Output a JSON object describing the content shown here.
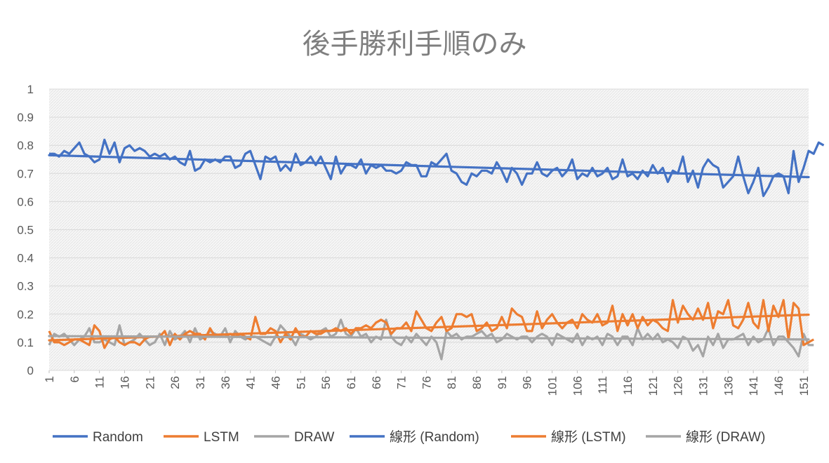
{
  "colors": {
    "random": "#4472c4",
    "lstm": "#ed7d31",
    "draw": "#a5a5a5",
    "axis_text": "#595959",
    "title": "#7f7f7f",
    "grid": "#d9d9d9"
  },
  "chart_data": {
    "type": "line",
    "title": "後手勝利手順のみ",
    "xlabel": "",
    "ylabel": "",
    "ylim": [
      0,
      1
    ],
    "yticks": [
      "0",
      "0.1",
      "0.2",
      "0.3",
      "0.4",
      "0.5",
      "0.6",
      "0.7",
      "0.8",
      "0.9",
      "1"
    ],
    "x_range": [
      1,
      152
    ],
    "xticks": [
      "1",
      "6",
      "11",
      "16",
      "21",
      "26",
      "31",
      "36",
      "41",
      "46",
      "51",
      "56",
      "61",
      "66",
      "71",
      "76",
      "81",
      "86",
      "91",
      "96",
      "101",
      "106",
      "111",
      "116",
      "121",
      "126",
      "131",
      "136",
      "141",
      "146",
      "151"
    ],
    "grid": true,
    "legend_position": "bottom",
    "series": [
      {
        "name": "Random",
        "values": [
          0.77,
          0.77,
          0.76,
          0.78,
          0.77,
          0.79,
          0.81,
          0.77,
          0.76,
          0.74,
          0.75,
          0.82,
          0.77,
          0.81,
          0.74,
          0.79,
          0.8,
          0.78,
          0.79,
          0.78,
          0.76,
          0.77,
          0.76,
          0.77,
          0.75,
          0.76,
          0.74,
          0.73,
          0.78,
          0.71,
          0.72,
          0.75,
          0.74,
          0.75,
          0.74,
          0.76,
          0.76,
          0.72,
          0.73,
          0.77,
          0.78,
          0.73,
          0.68,
          0.76,
          0.75,
          0.76,
          0.71,
          0.73,
          0.71,
          0.77,
          0.73,
          0.74,
          0.76,
          0.73,
          0.76,
          0.72,
          0.68,
          0.76,
          0.7,
          0.73,
          0.73,
          0.72,
          0.75,
          0.7,
          0.73,
          0.72,
          0.73,
          0.71,
          0.71,
          0.7,
          0.71,
          0.74,
          0.73,
          0.73,
          0.69,
          0.69,
          0.74,
          0.73,
          0.75,
          0.77,
          0.71,
          0.7,
          0.67,
          0.66,
          0.7,
          0.69,
          0.71,
          0.71,
          0.7,
          0.74,
          0.71,
          0.67,
          0.72,
          0.7,
          0.66,
          0.7,
          0.7,
          0.74,
          0.7,
          0.69,
          0.71,
          0.72,
          0.69,
          0.71,
          0.75,
          0.68,
          0.7,
          0.69,
          0.72,
          0.69,
          0.7,
          0.72,
          0.68,
          0.69,
          0.75,
          0.69,
          0.7,
          0.68,
          0.71,
          0.69,
          0.73,
          0.7,
          0.72,
          0.67,
          0.71,
          0.7,
          0.76,
          0.67,
          0.71,
          0.65,
          0.72,
          0.75,
          0.73,
          0.72,
          0.65,
          0.67,
          0.69,
          0.76,
          0.69,
          0.63,
          0.67,
          0.72,
          0.62,
          0.65,
          0.69,
          0.7,
          0.69,
          0.63,
          0.78,
          0.67,
          0.72,
          0.78,
          0.77,
          0.81,
          0.8
        ]
      },
      {
        "name": "LSTM",
        "values": [
          0.14,
          0.1,
          0.1,
          0.09,
          0.1,
          0.11,
          0.11,
          0.1,
          0.09,
          0.16,
          0.14,
          0.08,
          0.11,
          0.12,
          0.1,
          0.09,
          0.1,
          0.1,
          0.09,
          0.11,
          0.12,
          0.12,
          0.12,
          0.14,
          0.09,
          0.13,
          0.11,
          0.13,
          0.14,
          0.13,
          0.13,
          0.11,
          0.15,
          0.12,
          0.12,
          0.12,
          0.13,
          0.12,
          0.13,
          0.12,
          0.11,
          0.19,
          0.13,
          0.13,
          0.15,
          0.14,
          0.1,
          0.13,
          0.11,
          0.15,
          0.12,
          0.12,
          0.14,
          0.13,
          0.13,
          0.14,
          0.14,
          0.15,
          0.14,
          0.15,
          0.13,
          0.15,
          0.15,
          0.16,
          0.15,
          0.17,
          0.18,
          0.17,
          0.13,
          0.15,
          0.15,
          0.17,
          0.14,
          0.21,
          0.18,
          0.15,
          0.14,
          0.17,
          0.19,
          0.14,
          0.15,
          0.2,
          0.2,
          0.19,
          0.2,
          0.14,
          0.15,
          0.17,
          0.14,
          0.15,
          0.19,
          0.15,
          0.22,
          0.2,
          0.19,
          0.14,
          0.14,
          0.21,
          0.15,
          0.18,
          0.2,
          0.17,
          0.15,
          0.17,
          0.18,
          0.15,
          0.2,
          0.18,
          0.17,
          0.2,
          0.16,
          0.17,
          0.23,
          0.14,
          0.2,
          0.16,
          0.2,
          0.15,
          0.19,
          0.16,
          0.18,
          0.17,
          0.15,
          0.14,
          0.25,
          0.17,
          0.23,
          0.2,
          0.18,
          0.22,
          0.18,
          0.24,
          0.15,
          0.21,
          0.2,
          0.25,
          0.16,
          0.15,
          0.18,
          0.24,
          0.17,
          0.15,
          0.25,
          0.14,
          0.23,
          0.19,
          0.25,
          0.11,
          0.24,
          0.22,
          0.09,
          0.1,
          0.11
        ]
      },
      {
        "name": "DRAW",
        "values": [
          0.09,
          0.13,
          0.12,
          0.13,
          0.11,
          0.09,
          0.11,
          0.12,
          0.15,
          0.1,
          0.1,
          0.11,
          0.1,
          0.09,
          0.16,
          0.09,
          0.1,
          0.11,
          0.13,
          0.11,
          0.09,
          0.1,
          0.13,
          0.09,
          0.14,
          0.11,
          0.12,
          0.14,
          0.1,
          0.15,
          0.11,
          0.12,
          0.14,
          0.13,
          0.12,
          0.15,
          0.1,
          0.14,
          0.12,
          0.11,
          0.12,
          0.12,
          0.11,
          0.1,
          0.09,
          0.12,
          0.16,
          0.14,
          0.12,
          0.09,
          0.13,
          0.12,
          0.11,
          0.12,
          0.14,
          0.15,
          0.12,
          0.13,
          0.18,
          0.13,
          0.12,
          0.15,
          0.12,
          0.13,
          0.1,
          0.12,
          0.11,
          0.18,
          0.12,
          0.1,
          0.09,
          0.12,
          0.1,
          0.13,
          0.11,
          0.09,
          0.12,
          0.1,
          0.04,
          0.14,
          0.12,
          0.13,
          0.11,
          0.12,
          0.12,
          0.13,
          0.14,
          0.12,
          0.13,
          0.1,
          0.11,
          0.13,
          0.12,
          0.11,
          0.12,
          0.12,
          0.1,
          0.12,
          0.13,
          0.12,
          0.09,
          0.13,
          0.12,
          0.11,
          0.1,
          0.13,
          0.09,
          0.12,
          0.11,
          0.12,
          0.09,
          0.13,
          0.12,
          0.09,
          0.12,
          0.12,
          0.09,
          0.15,
          0.11,
          0.13,
          0.11,
          0.13,
          0.1,
          0.11,
          0.1,
          0.08,
          0.12,
          0.11,
          0.07,
          0.09,
          0.05,
          0.12,
          0.09,
          0.13,
          0.08,
          0.11,
          0.11,
          0.12,
          0.13,
          0.09,
          0.12,
          0.1,
          0.11,
          0.15,
          0.09,
          0.12,
          0.12,
          0.1,
          0.08,
          0.05,
          0.13,
          0.09,
          0.09
        ]
      },
      {
        "name": "線形 (Random)",
        "type": "linear_trend",
        "of": "Random",
        "values": [
          0.765,
          0.687
        ]
      },
      {
        "name": "線形 (LSTM)",
        "type": "linear_trend",
        "of": "LSTM",
        "values": [
          0.107,
          0.198
        ]
      },
      {
        "name": "線形 (DRAW)",
        "type": "linear_trend",
        "of": "DRAW",
        "values": [
          0.122,
          0.11
        ]
      }
    ]
  }
}
